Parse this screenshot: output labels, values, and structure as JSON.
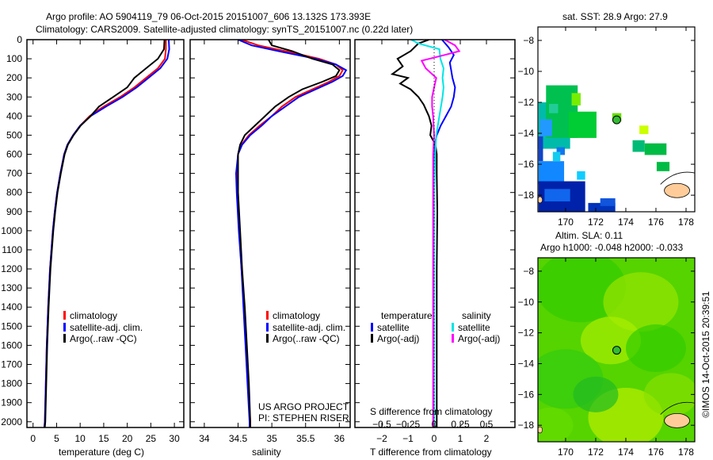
{
  "header": {
    "title_line1": "Argo profile: AO 5904119_79 06-Oct-2015 20151007_606 13.132S 173.393E",
    "title_line2": "Climatology: CARS2009. Satellite-adjusted climatology: synTS_20151007.nc (0.22d later)"
  },
  "credits": {
    "project": "US ARGO PROJECT",
    "pi": "PI: STEPHEN RISER",
    "stamp": "©IMOS 14-Oct-2015 20:39:51"
  },
  "colors": {
    "climatology": "#ff0000",
    "satellite": "#0000ff",
    "argo": "#000000",
    "sal_satellite": "#00e5e5",
    "sal_argo": "#ff00ff"
  },
  "chart_data": [
    {
      "type": "line",
      "id": "temperature",
      "xlabel": "temperature (deg C)",
      "ylabel": "",
      "xlim": [
        -1.3,
        32
      ],
      "ylim": [
        2030,
        0
      ],
      "xticks": [
        0,
        5,
        10,
        15,
        20,
        25,
        30
      ],
      "yticks": [
        0,
        100,
        200,
        300,
        400,
        500,
        600,
        700,
        800,
        900,
        1000,
        1100,
        1200,
        1300,
        1400,
        1500,
        1600,
        1700,
        1800,
        1900,
        2000
      ],
      "legend": [
        "climatology",
        "satellite-adj. clim.",
        "Argo(..raw -QC)"
      ],
      "series": [
        {
          "name": "climatology",
          "color": "#ff0000",
          "depth": [
            0,
            50,
            100,
            150,
            200,
            250,
            300,
            350,
            400,
            450,
            500,
            550,
            600,
            700,
            800,
            900,
            1000,
            1200,
            1400,
            1600,
            1800,
            2000,
            2030
          ],
          "values": [
            28.2,
            28.2,
            28,
            26.5,
            24,
            21.5,
            18.5,
            15,
            12,
            10,
            8.5,
            7.3,
            6.6,
            5.8,
            5.1,
            4.6,
            4.2,
            3.6,
            3.2,
            2.9,
            2.7,
            2.5,
            2.4
          ]
        },
        {
          "name": "satellite-adj. clim.",
          "color": "#0000ff",
          "depth": [
            0,
            50,
            100,
            150,
            200,
            250,
            300,
            350,
            400,
            450,
            500,
            550,
            600,
            700,
            800,
            900,
            1000,
            1200,
            1400,
            1600,
            1800,
            2000,
            2030
          ],
          "values": [
            28.8,
            28.9,
            28.5,
            27,
            24.5,
            22,
            19,
            15.5,
            12.2,
            10,
            8.5,
            7.3,
            6.6,
            5.8,
            5.1,
            4.6,
            4.2,
            3.6,
            3.2,
            2.9,
            2.7,
            2.5,
            2.4
          ]
        },
        {
          "name": "Argo(..raw -QC)",
          "color": "#000000",
          "depth": [
            0,
            50,
            100,
            150,
            200,
            250,
            300,
            350,
            400,
            450,
            500,
            550,
            600,
            700,
            800,
            900,
            1000,
            1200,
            1400,
            1600,
            1800,
            2000,
            2030
          ],
          "values": [
            27.9,
            27.8,
            26.5,
            24,
            21.5,
            20,
            17,
            14,
            12.2,
            10.1,
            8.6,
            7.4,
            6.7,
            5.9,
            5.2,
            4.7,
            4.3,
            3.7,
            3.3,
            3.0,
            2.8,
            2.6,
            2.5
          ]
        }
      ]
    },
    {
      "type": "line",
      "id": "salinity",
      "xlabel": "salinity",
      "ylabel": "",
      "xlim": [
        33.79,
        36.16
      ],
      "ylim": [
        2030,
        0
      ],
      "xticks": [
        34,
        34.5,
        35,
        35.5,
        36
      ],
      "legend": [
        "climatology",
        "satellite-adj. clim.",
        "Argo(..raw -QC)"
      ],
      "series": [
        {
          "name": "climatology",
          "color": "#ff0000",
          "depth": [
            0,
            30,
            60,
            100,
            130,
            160,
            190,
            220,
            260,
            300,
            350,
            400,
            450,
            500,
            550,
            600,
            700,
            800,
            1000,
            1200,
            1400,
            1600,
            1800,
            2000,
            2030
          ],
          "values": [
            34.55,
            34.8,
            35.2,
            35.7,
            35.95,
            36.05,
            36.0,
            35.85,
            35.6,
            35.35,
            35.15,
            35.0,
            34.82,
            34.66,
            34.55,
            34.5,
            34.48,
            34.49,
            34.52,
            34.55,
            34.59,
            34.62,
            34.65,
            34.68,
            34.68
          ]
        },
        {
          "name": "satellite-adj. clim.",
          "color": "#0000ff",
          "depth": [
            0,
            30,
            60,
            100,
            130,
            160,
            190,
            220,
            260,
            300,
            350,
            400,
            450,
            500,
            550,
            600,
            700,
            800,
            1000,
            1200,
            1400,
            1600,
            1800,
            2000,
            2030
          ],
          "values": [
            34.5,
            34.7,
            35.1,
            35.65,
            35.95,
            36.1,
            36.05,
            35.9,
            35.65,
            35.4,
            35.2,
            35.0,
            34.85,
            34.68,
            34.56,
            34.5,
            34.47,
            34.48,
            34.51,
            34.55,
            34.58,
            34.61,
            34.64,
            34.67,
            34.67
          ]
        },
        {
          "name": "Argo(..raw -QC)",
          "color": "#000000",
          "depth": [
            0,
            30,
            60,
            100,
            130,
            160,
            190,
            220,
            260,
            300,
            350,
            400,
            450,
            500,
            550,
            600,
            700,
            800,
            1000,
            1200,
            1400,
            1600,
            1800,
            2000,
            2030
          ],
          "values": [
            34.95,
            35.0,
            35.3,
            35.6,
            35.9,
            36.0,
            35.95,
            35.75,
            35.45,
            35.25,
            35.05,
            34.9,
            34.75,
            34.6,
            34.53,
            34.5,
            34.5,
            34.5,
            34.53,
            34.56,
            34.6,
            34.63,
            34.66,
            34.68,
            34.68
          ]
        }
      ]
    },
    {
      "type": "line",
      "id": "differences",
      "xlabel": "T difference from climatology",
      "xlabel2": "S difference from climatology",
      "xlim": [
        -3.03,
        3.09
      ],
      "ylim": [
        2030,
        0
      ],
      "xticks": [
        -2,
        -1,
        0,
        1,
        2
      ],
      "xticks2": [
        -0.5,
        -0.25,
        0,
        0.25,
        0.5
      ],
      "legend": {
        "temperature_heading": "temperature",
        "salinity_heading": "salinity",
        "t_satellite": "satellite",
        "t_argo": "Argo(-adj)",
        "s_satellite": "satellite",
        "s_argo": "Argo(-adj)"
      },
      "series": [
        {
          "name": "T satellite",
          "color": "#0000ff",
          "units": "T",
          "depth": [
            0,
            40,
            80,
            120,
            160,
            200,
            250,
            300,
            350,
            400,
            450,
            500,
            550,
            600,
            800,
            1000,
            2030
          ],
          "values": [
            0.3,
            0.55,
            0.75,
            0.6,
            0.65,
            0.7,
            0.8,
            0.75,
            0.65,
            0.45,
            0.25,
            0.1,
            0.02,
            0,
            0,
            0,
            0
          ]
        },
        {
          "name": "T Argo(-adj)",
          "color": "#000000",
          "units": "T",
          "depth": [
            0,
            20,
            60,
            100,
            140,
            180,
            200,
            230,
            260,
            300,
            340,
            400,
            450,
            500,
            550,
            600,
            700,
            900,
            1200,
            1500,
            2030
          ],
          "values": [
            -0.2,
            -0.6,
            -0.9,
            -1.4,
            -1.2,
            -1.6,
            -1.0,
            -1.3,
            -0.9,
            -0.6,
            -0.4,
            -0.2,
            -0.1,
            -0.15,
            0.05,
            0.1,
            0.1,
            0.12,
            0.1,
            0.1,
            0.1
          ]
        },
        {
          "name": "S satellite",
          "color": "#00e5e5",
          "units": "S",
          "depth": [
            0,
            20,
            50,
            100,
            150,
            200,
            250,
            300,
            400,
            500,
            600,
            800,
            2030
          ],
          "values": [
            -0.22,
            -0.15,
            0.05,
            0.06,
            0.09,
            0.08,
            0.09,
            0.08,
            0.05,
            0.02,
            0.01,
            0.0,
            0.0
          ]
        },
        {
          "name": "S Argo(-adj)",
          "color": "#ff00ff",
          "units": "S",
          "depth": [
            0,
            30,
            60,
            80,
            110,
            150,
            200,
            250,
            300,
            350,
            400,
            500,
            600,
            800,
            2030
          ],
          "values": [
            0.1,
            0.2,
            0.24,
            0.1,
            -0.12,
            -0.08,
            0.02,
            0.0,
            -0.02,
            -0.02,
            -0.01,
            0.0,
            -0.01,
            -0.01,
            -0.01
          ]
        }
      ]
    },
    {
      "type": "heatmap",
      "id": "sst-map",
      "title": "sat. SST: 28.9 Argo: 27.9",
      "xlim": [
        168.16,
        178.58
      ],
      "ylim": [
        -19.07,
        -7.13
      ],
      "xticks": [
        170,
        172,
        174,
        176,
        178
      ],
      "yticks": [
        -8,
        -10,
        -12,
        -14,
        -16,
        -18
      ],
      "float": {
        "lon": 173.393,
        "lat": -13.132
      },
      "cells": [
        [
          168.2,
          -12,
          170.3,
          -15,
          "#00bbaa"
        ],
        [
          168.7,
          -10.9,
          170.8,
          -14.3,
          "#00c050"
        ],
        [
          170.2,
          -12.6,
          172.05,
          -14.3,
          "#00cc33"
        ],
        [
          170.4,
          -11.4,
          171,
          -12.2,
          "#77ee00"
        ],
        [
          168.9,
          -12.1,
          169.5,
          -12.7,
          "#22cc99"
        ],
        [
          168.3,
          -13.1,
          169.1,
          -14.2,
          "#2299ff"
        ],
        [
          168.2,
          -15.8,
          169.9,
          -17.3,
          "#1188ff"
        ],
        [
          168.2,
          -17.1,
          171.3,
          -19.1,
          "#0022aa"
        ],
        [
          168.6,
          -17.6,
          170.3,
          -18.4,
          "#1166ee"
        ],
        [
          169.4,
          -14.9,
          169.95,
          -15.4,
          "#1177ee"
        ],
        [
          169.15,
          -15.2,
          169.65,
          -15.8,
          "#11ccee"
        ],
        [
          170.75,
          -16.45,
          171.3,
          -17.0,
          "#11ccff"
        ],
        [
          171.5,
          -18.5,
          173.3,
          -19.1,
          "#0033bb"
        ],
        [
          172.3,
          -18.2,
          173.3,
          -18.7,
          "#1155dd"
        ],
        [
          173.1,
          -12.7,
          173.7,
          -13.25,
          "#66dd00"
        ],
        [
          174.9,
          -13.5,
          175.5,
          -14.05,
          "#ccff00"
        ],
        [
          174.45,
          -14.45,
          175.25,
          -15.2,
          "#00bb77"
        ],
        [
          175.25,
          -14.65,
          176.7,
          -15.4,
          "#00bb44"
        ],
        [
          176.05,
          -15.85,
          176.9,
          -16.45,
          "#00bb44"
        ],
        [
          168.2,
          -14.2,
          168.5,
          -15.8,
          "#1144cc"
        ]
      ]
    },
    {
      "type": "heatmap",
      "id": "sla-map",
      "title_line1": "Altim. SLA: 0.11",
      "title_line2": "Argo h1000: -0.048 h2000: -0.033",
      "xlim": [
        168.16,
        178.58
      ],
      "ylim": [
        -19.07,
        -7.13
      ],
      "xticks": [
        170,
        172,
        174,
        176,
        178
      ],
      "yticks": [
        -8,
        -10,
        -12,
        -14,
        -16,
        -18
      ],
      "float": {
        "lon": 173.393,
        "lat": -13.132
      }
    }
  ]
}
